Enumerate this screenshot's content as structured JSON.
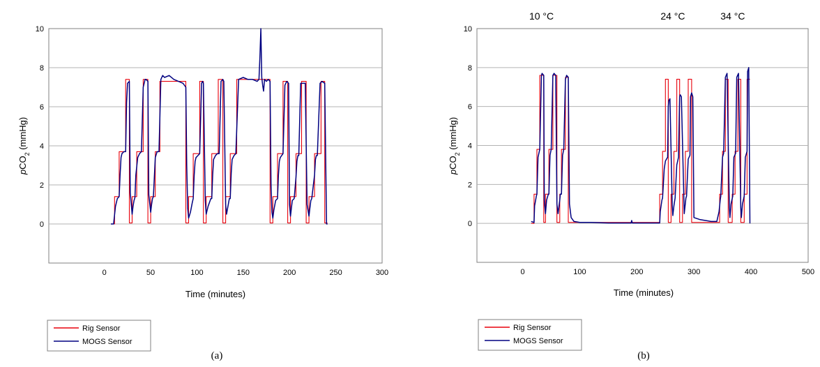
{
  "chart_data": [
    {
      "type": "line",
      "caption": "(a)",
      "xlabel": "Time (minutes)",
      "ylabel_prefix": "p",
      "ylabel_main": "CO",
      "ylabel_sub": "2",
      "ylabel_suffix": " (mmHg)",
      "xlim": [
        -60,
        300
      ],
      "ylim": [
        -2,
        10
      ],
      "xticks": [
        0,
        50,
        100,
        150,
        200,
        250,
        300
      ],
      "yticks": [
        0,
        2,
        4,
        6,
        8,
        10
      ],
      "grid": "horizontal",
      "legend_position": "below-left",
      "colors": {
        "rig": "#e8000b",
        "mogs": "#000080"
      },
      "series": [
        {
          "name": "Rig Sensor",
          "x": [
            7,
            11,
            11,
            16,
            16,
            23,
            23,
            27,
            27,
            30,
            30,
            35,
            35,
            42,
            42,
            47,
            47,
            50,
            50,
            55,
            55,
            60,
            60,
            88,
            88,
            91,
            91,
            96,
            96,
            103,
            103,
            107,
            107,
            110,
            110,
            116,
            116,
            123,
            123,
            128,
            128,
            131,
            131,
            136,
            136,
            143,
            143,
            179,
            179,
            182,
            182,
            187,
            187,
            193,
            193,
            198,
            198,
            201,
            201,
            207,
            207,
            213,
            213,
            218,
            218,
            221,
            221,
            227,
            227,
            234,
            234,
            238,
            238,
            241
          ],
          "y": [
            0,
            0,
            1.4,
            1.4,
            3.7,
            3.7,
            7.4,
            7.4,
            0.05,
            0.05,
            1.4,
            1.4,
            3.7,
            3.7,
            7.4,
            7.4,
            0.05,
            0.05,
            1.4,
            1.4,
            3.7,
            3.7,
            7.3,
            7.3,
            0.05,
            0.05,
            1.4,
            1.4,
            3.6,
            3.6,
            7.3,
            7.3,
            0.05,
            0.05,
            1.4,
            1.4,
            3.6,
            3.6,
            7.4,
            7.4,
            0.05,
            0.05,
            1.4,
            1.4,
            3.6,
            3.6,
            7.4,
            7.4,
            0.05,
            0.05,
            1.4,
            1.4,
            3.6,
            3.6,
            7.3,
            7.3,
            0.05,
            0.05,
            1.4,
            1.4,
            3.6,
            3.6,
            7.3,
            7.3,
            0.05,
            0.05,
            1.4,
            1.4,
            3.6,
            3.6,
            7.3,
            7.3,
            0.05,
            0.05
          ]
        },
        {
          "name": "MOGS Sensor",
          "x": [
            7,
            10,
            12,
            14,
            16,
            17,
            18,
            19,
            21,
            23,
            24,
            25,
            27,
            28,
            30,
            31,
            32,
            33,
            34,
            36,
            38,
            40,
            42,
            44,
            45,
            47,
            48,
            50,
            51,
            52,
            53,
            55,
            57,
            59,
            61,
            63,
            65,
            70,
            75,
            80,
            85,
            88,
            89,
            90,
            91,
            93,
            95,
            96,
            97,
            98,
            99,
            101,
            103,
            105,
            106,
            107,
            109,
            110,
            112,
            115,
            116,
            117,
            118,
            120,
            122,
            124,
            126,
            128,
            129,
            131,
            132,
            135,
            136,
            137,
            138,
            140,
            142,
            145,
            150,
            155,
            160,
            165,
            167,
            168,
            169,
            170,
            171,
            172,
            173,
            175,
            177,
            179,
            180,
            181,
            182,
            183,
            185,
            187,
            188,
            189,
            190,
            193,
            195,
            197,
            199,
            200,
            201,
            202,
            203,
            205,
            207,
            208,
            209,
            210,
            212,
            214,
            217,
            219,
            221,
            222,
            223,
            224,
            227,
            228,
            229,
            230,
            233,
            235,
            238,
            240,
            241
          ],
          "y": [
            0,
            0,
            0.9,
            1.3,
            1.4,
            2.5,
            3.4,
            3.6,
            3.7,
            3.7,
            6.2,
            7.2,
            7.3,
            1.6,
            0.5,
            0.9,
            1.2,
            1.35,
            2.5,
            3.4,
            3.6,
            3.7,
            7.0,
            7.4,
            7.4,
            7.3,
            1.5,
            0.6,
            1.0,
            1.3,
            1.4,
            3.4,
            3.7,
            3.7,
            7.4,
            7.6,
            7.5,
            7.6,
            7.4,
            7.3,
            7.2,
            7.0,
            3.0,
            0.8,
            0.3,
            0.6,
            1.1,
            1.3,
            2.5,
            3.2,
            3.4,
            3.5,
            3.6,
            7.2,
            7.3,
            7.2,
            1.2,
            0.5,
            0.9,
            1.3,
            1.3,
            2.5,
            3.3,
            3.5,
            3.6,
            3.6,
            7.3,
            7.4,
            7.3,
            1.0,
            0.5,
            1.3,
            1.3,
            2.6,
            3.3,
            3.5,
            3.6,
            7.4,
            7.5,
            7.4,
            7.4,
            7.3,
            7.4,
            8.5,
            10,
            7.5,
            7.1,
            6.8,
            7.4,
            7.3,
            7.4,
            7.3,
            2.0,
            0.6,
            0.3,
            0.7,
            1.2,
            1.3,
            2.5,
            3.2,
            3.4,
            3.6,
            7.1,
            7.3,
            7.2,
            1.0,
            0.4,
            0.8,
            1.2,
            1.3,
            2.4,
            3.2,
            3.5,
            3.5,
            7.2,
            7.2,
            7.2,
            1.0,
            0.4,
            0.8,
            1.2,
            1.3,
            2.5,
            3.3,
            3.5,
            3.5,
            7.2,
            7.3,
            7.2,
            0,
            0
          ]
        }
      ]
    },
    {
      "type": "line",
      "caption": "(b)",
      "xlabel": "Time (minutes)",
      "ylabel_prefix": "p",
      "ylabel_main": "CO",
      "ylabel_sub": "2",
      "ylabel_suffix": " (mmHg)",
      "xlim": [
        -80,
        500
      ],
      "ylim": [
        -2,
        10
      ],
      "xticks": [
        0,
        100,
        200,
        300,
        400,
        500
      ],
      "yticks": [
        0,
        2,
        4,
        6,
        8,
        10
      ],
      "grid": "horizontal",
      "legend_position": "below-left",
      "annotations": [
        {
          "text": "10 °C",
          "x": 33
        },
        {
          "text": "24 °C",
          "x": 263
        },
        {
          "text": "34 °C",
          "x": 368
        }
      ],
      "colors": {
        "rig": "#e8000b",
        "mogs": "#000080"
      },
      "series": [
        {
          "name": "Rig Sensor",
          "x": [
            15,
            20,
            20,
            25,
            25,
            30,
            30,
            37,
            37,
            40,
            40,
            46,
            46,
            53,
            53,
            60,
            60,
            65,
            65,
            68,
            68,
            75,
            75,
            80,
            80,
            240,
            240,
            245,
            245,
            250,
            250,
            255,
            255,
            260,
            260,
            265,
            265,
            270,
            270,
            275,
            275,
            280,
            280,
            285,
            285,
            290,
            290,
            296,
            296,
            345,
            345,
            350,
            350,
            355,
            355,
            360,
            360,
            367,
            367,
            372,
            372,
            377,
            377,
            382,
            382,
            388,
            388,
            393,
            393,
            398
          ],
          "y": [
            0,
            0,
            1.5,
            1.5,
            3.8,
            3.8,
            7.6,
            7.6,
            0.05,
            0.05,
            1.5,
            1.5,
            3.8,
            3.8,
            7.6,
            7.6,
            0.05,
            0.05,
            1.5,
            1.5,
            3.8,
            3.8,
            7.5,
            7.5,
            0.05,
            0.05,
            1.5,
            1.5,
            3.7,
            3.7,
            7.4,
            7.4,
            0.05,
            0.05,
            1.5,
            1.5,
            3.7,
            3.7,
            7.4,
            7.4,
            0.05,
            0.05,
            1.5,
            1.5,
            3.7,
            3.7,
            7.4,
            7.4,
            0.05,
            0.05,
            1.5,
            1.5,
            3.7,
            3.7,
            7.4,
            7.4,
            0.05,
            0.05,
            1.5,
            1.5,
            3.7,
            3.7,
            7.4,
            7.4,
            0.05,
            0.05,
            1.5,
            1.5,
            7.4,
            7.4
          ]
        },
        {
          "name": "MOGS Sensor",
          "x": [
            15,
            20,
            21,
            24,
            25,
            27,
            30,
            33,
            34,
            37,
            38,
            40,
            42,
            45,
            46,
            48,
            50,
            53,
            55,
            58,
            60,
            62,
            65,
            66,
            68,
            70,
            72,
            75,
            77,
            80,
            82,
            85,
            90,
            100,
            120,
            150,
            180,
            190,
            191,
            192,
            195,
            200,
            220,
            240,
            241,
            244,
            245,
            248,
            250,
            254,
            255,
            256,
            258,
            262,
            263,
            265,
            267,
            270,
            273,
            275,
            276,
            278,
            283,
            286,
            287,
            290,
            293,
            294,
            296,
            298,
            300,
            310,
            320,
            330,
            340,
            344,
            346,
            347,
            350,
            352,
            355,
            358,
            362,
            363,
            365,
            368,
            370,
            373,
            375,
            378,
            382,
            383,
            385,
            388,
            390,
            393,
            394,
            396,
            398
          ],
          "y": [
            0.1,
            0.05,
            0.9,
            1.4,
            1.5,
            3.4,
            3.8,
            7.6,
            7.7,
            7.6,
            1.2,
            0.5,
            1.2,
            1.5,
            1.5,
            3.5,
            3.8,
            7.6,
            7.7,
            7.6,
            1.0,
            0.5,
            1.2,
            1.5,
            1.5,
            3.5,
            3.8,
            7.4,
            7.6,
            7.5,
            1.0,
            0.3,
            0.1,
            0.05,
            0.05,
            0.02,
            0.02,
            0.02,
            0.15,
            0.02,
            0.02,
            0.02,
            0.02,
            0.02,
            0.6,
            1.2,
            1.3,
            2.8,
            3.2,
            3.4,
            6.0,
            6.3,
            6.4,
            0.9,
            0.4,
            0.9,
            1.3,
            3.0,
            3.4,
            6.5,
            6.6,
            6.5,
            0.5,
            1.3,
            1.4,
            3.3,
            3.5,
            6.5,
            6.7,
            6.5,
            0.3,
            0.2,
            0.15,
            0.1,
            0.1,
            0.6,
            1.2,
            1.4,
            3.4,
            3.6,
            7.5,
            7.7,
            0.8,
            0.3,
            1.0,
            1.4,
            3.4,
            3.6,
            7.5,
            7.7,
            0.8,
            0.3,
            1.0,
            1.4,
            3.4,
            3.7,
            7.8,
            8.0,
            0
          ]
        }
      ]
    }
  ]
}
